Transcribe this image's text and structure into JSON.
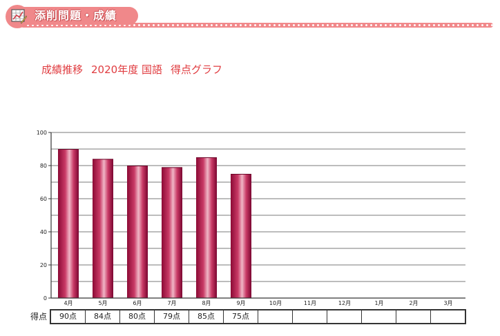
{
  "header": {
    "title": "添削問題・成績",
    "icon": "chart-icon",
    "accent_color": "#f0888a"
  },
  "chart_data": {
    "type": "bar",
    "title": "成績推移",
    "title_parts": [
      "成績推移",
      "2020年度 国語",
      "得点グラフ"
    ],
    "categories": [
      "4月",
      "5月",
      "6月",
      "7月",
      "8月",
      "9月",
      "10月",
      "11月",
      "12月",
      "1月",
      "2月",
      "3月"
    ],
    "values": [
      90,
      84,
      80,
      79,
      85,
      75,
      null,
      null,
      null,
      null,
      null,
      null
    ],
    "ylim": [
      0,
      100
    ],
    "yticks": [
      0,
      20,
      40,
      60,
      80,
      100
    ],
    "minor_gridlines_every": 10,
    "grid": true,
    "bar_color": "#a8113f",
    "title_color": "#e03c40",
    "xlabel": "",
    "ylabel": ""
  },
  "score_table": {
    "row_label": "得点",
    "cells": [
      "90点",
      "84点",
      "80点",
      "79点",
      "85点",
      "75点",
      "",
      "",
      "",
      "",
      "",
      ""
    ]
  }
}
